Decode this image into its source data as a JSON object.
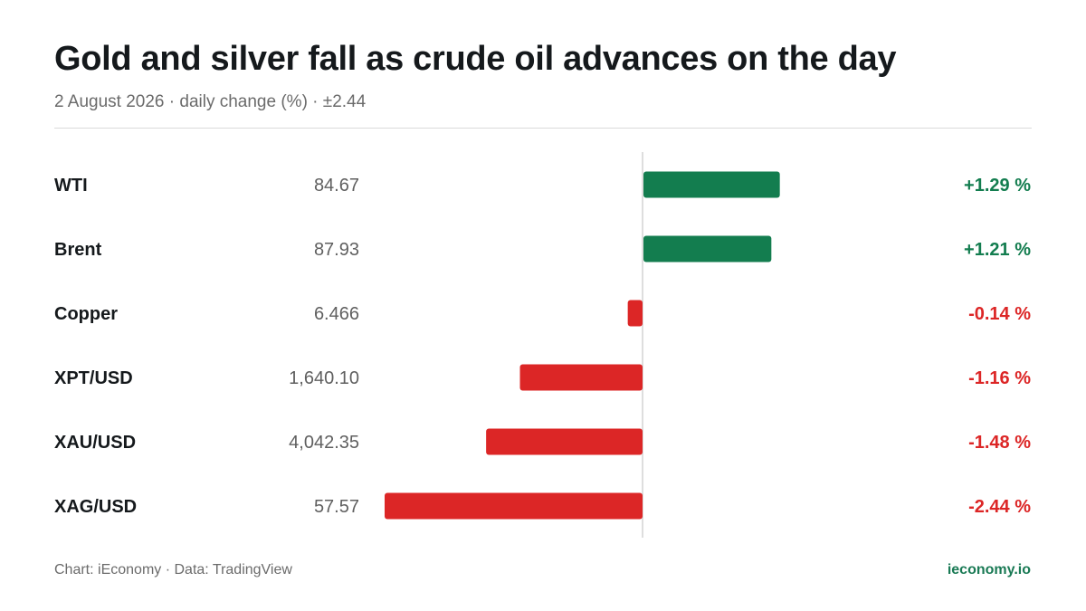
{
  "title": "Gold and silver fall as crude oil advances on the day",
  "subtitle": "2 August 2026 · daily change (%) · ±2.44",
  "footer": {
    "source": "Chart: iEconomy · Data: TradingView",
    "brand": "ieconomy.io"
  },
  "colors": {
    "positive": "#137d4f",
    "negative": "#dc2626",
    "axis": "#d4d4d4"
  },
  "chart_data": {
    "type": "bar",
    "orientation": "horizontal",
    "title": "Gold and silver fall as crude oil advances on the day",
    "subtitle": "2 August 2026 · daily change (%) · ±2.44",
    "categories": [
      "WTI",
      "Brent",
      "Copper",
      "XPT/USD",
      "XAU/USD",
      "XAG/USD"
    ],
    "prices": [
      "84.67",
      "87.93",
      "6.466",
      "1,640.10",
      "4,042.35",
      "57.57"
    ],
    "values": [
      1.29,
      1.21,
      -0.14,
      -1.16,
      -1.48,
      -2.44
    ],
    "value_labels": [
      "+1.29 %",
      "+1.21 %",
      "-0.14 %",
      "-1.16 %",
      "-1.48 %",
      "-2.44 %"
    ],
    "xlim": [
      -2.44,
      2.44
    ],
    "grid": false,
    "legend": "none"
  }
}
